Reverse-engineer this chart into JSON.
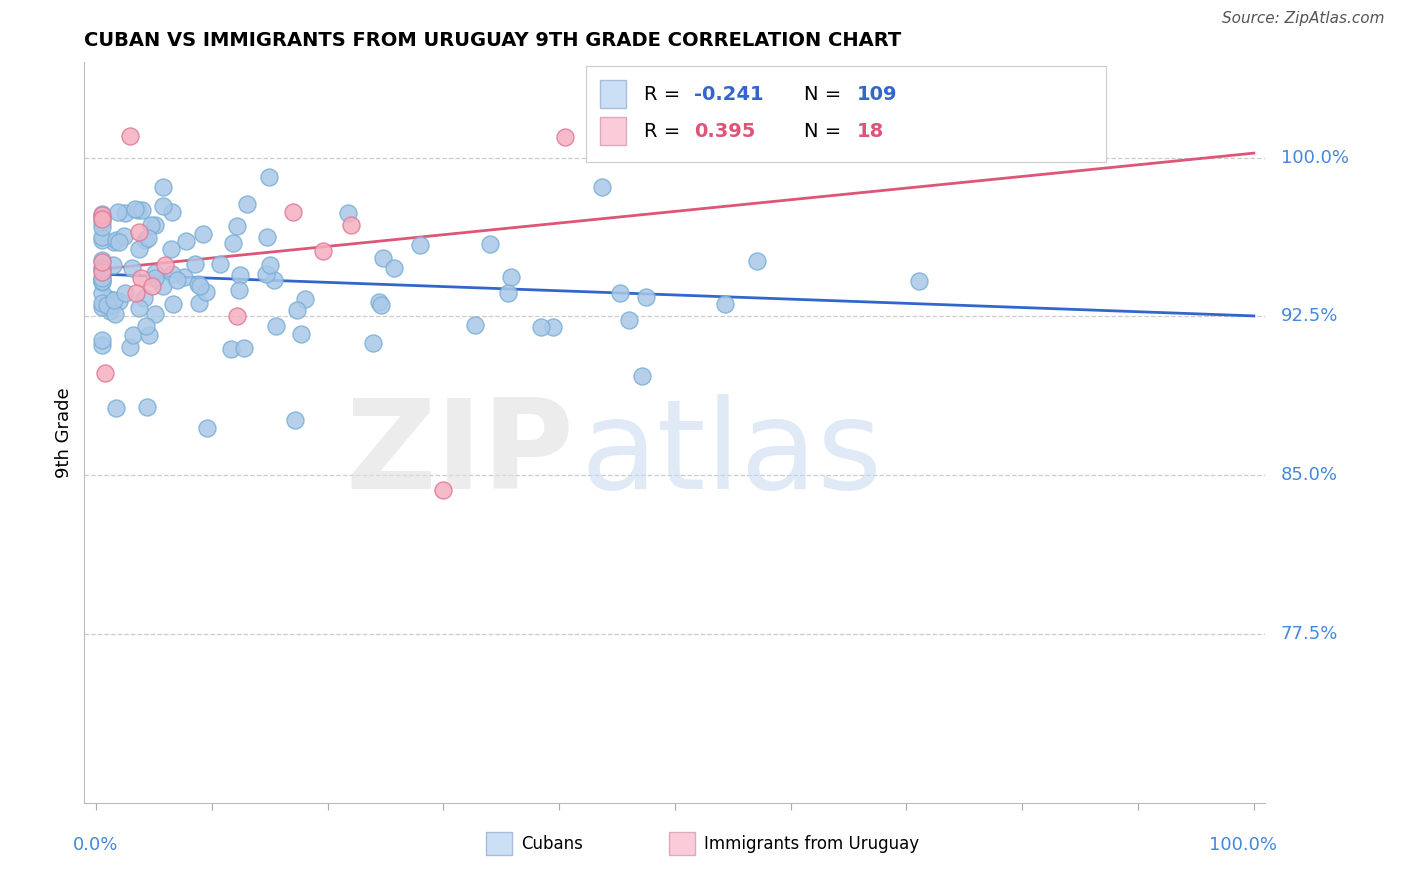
{
  "title": "CUBAN VS IMMIGRANTS FROM URUGUAY 9TH GRADE CORRELATION CHART",
  "source": "Source: ZipAtlas.com",
  "ylabel": "9th Grade",
  "y_tick_labels": [
    "77.5%",
    "85.0%",
    "92.5%",
    "100.0%"
  ],
  "y_tick_values": [
    0.775,
    0.85,
    0.925,
    1.0
  ],
  "blue_R": -0.241,
  "blue_N": 109,
  "pink_R": 0.395,
  "pink_N": 18,
  "blue_color": "#aac8e8",
  "blue_edge": "#7aafd4",
  "pink_color": "#f5afc0",
  "pink_edge": "#e07898",
  "blue_line_color": "#3366cc",
  "pink_line_color": "#dd5577",
  "legend_blue_fill": "#cce0f5",
  "legend_pink_fill": "#faccda",
  "blue_R_color": "#3366cc",
  "blue_N_color": "#3366cc",
  "pink_R_color": "#dd5577",
  "pink_N_color": "#dd5577",
  "ytick_color": "#4488dd",
  "xtick_color": "#4488dd",
  "source_color": "#555555",
  "y_min": 0.695,
  "y_max": 1.045
}
